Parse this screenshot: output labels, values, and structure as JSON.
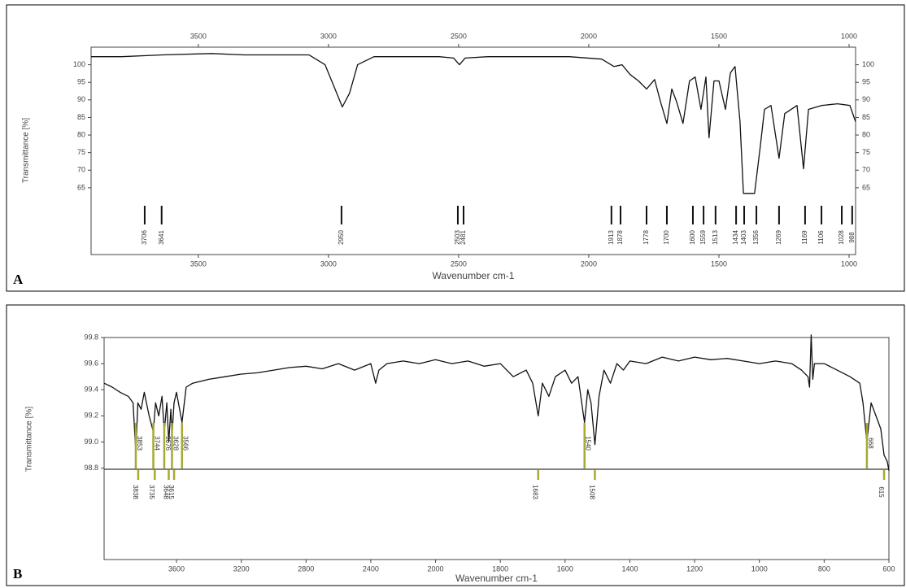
{
  "chart_data": [
    {
      "type": "line",
      "label": "A",
      "x_label": "Wavenumber cm-1",
      "y_label": "Transmittance [%]",
      "color": "#111111",
      "xlim": [
        3912,
        975
      ],
      "xticks": [
        3500,
        3000,
        2500,
        2000,
        1500,
        1000
      ],
      "ylim": [
        46,
        105
      ],
      "yticks": [
        100,
        95,
        90,
        85,
        80,
        75,
        70,
        65
      ],
      "x": [
        3912,
        3794,
        3638,
        3450,
        3325,
        3075,
        3013,
        2975,
        2947,
        2919,
        2888,
        2825,
        2575,
        2519,
        2497,
        2475,
        2388,
        2075,
        1950,
        1903,
        1872,
        1841,
        1809,
        1778,
        1747,
        1725,
        1700,
        1681,
        1663,
        1638,
        1613,
        1591,
        1569,
        1550,
        1538,
        1519,
        1500,
        1475,
        1456,
        1438,
        1419,
        1406,
        1363,
        1341,
        1325,
        1300,
        1269,
        1247,
        1200,
        1175,
        1156,
        1106,
        1044,
        997,
        975
      ],
      "values": [
        102.3,
        102.3,
        102.8,
        103.2,
        102.8,
        102.8,
        100,
        93.1,
        88.0,
        91.9,
        100,
        102.3,
        102.3,
        101.9,
        100,
        101.9,
        102.3,
        102.3,
        101.6,
        99.5,
        100,
        97.2,
        95.4,
        93.1,
        95.8,
        89.6,
        83.3,
        93.1,
        89.6,
        83.3,
        95.4,
        96.5,
        87.3,
        96.5,
        79.2,
        95.4,
        95.4,
        87.3,
        97.7,
        99.5,
        83.8,
        63.4,
        63.4,
        76.9,
        87.3,
        88.4,
        73.4,
        86.1,
        88.4,
        70.4,
        87.3,
        88.4,
        88.9,
        88.4,
        83.8
      ],
      "peaks": [
        3706,
        3641,
        2950,
        2503,
        2481,
        1913,
        1878,
        1778,
        1700,
        1600,
        1559,
        1513,
        1434,
        1403,
        1356,
        1269,
        1169,
        1106,
        1028,
        988
      ]
    },
    {
      "type": "line",
      "label": "B",
      "x_label": "Wavenumber cm-1",
      "y_label": "Transmittance [%]",
      "color": "#111111",
      "peak_color": "#a8a832",
      "xlim": [
        4050,
        600
      ],
      "xticks": [
        3600,
        3200,
        2800,
        2400,
        2000,
        1800,
        1600,
        1400,
        1200,
        1000,
        800,
        600
      ],
      "ylim": [
        98.1,
        99.8
      ],
      "yticks": [
        {
          "value": 99.8,
          "label": "99.8"
        },
        {
          "value": 99.6,
          "label": "99.6"
        },
        {
          "value": 99.4,
          "label": "99.4"
        },
        {
          "value": 99.2,
          "label": "99.2"
        },
        {
          "value": 99.0,
          "label": "99.0"
        },
        {
          "value": 98.8,
          "label": "98.8"
        }
      ],
      "x": [
        4050,
        4000,
        3950,
        3900,
        3870,
        3853,
        3840,
        3820,
        3800,
        3770,
        3744,
        3730,
        3710,
        3690,
        3676,
        3660,
        3648,
        3635,
        3628,
        3615,
        3600,
        3566,
        3540,
        3500,
        3400,
        3300,
        3200,
        3100,
        3000,
        2900,
        2800,
        2700,
        2600,
        2500,
        2400,
        2370,
        2350,
        2300,
        2200,
        2100,
        2000,
        1950,
        1900,
        1850,
        1800,
        1760,
        1720,
        1700,
        1683,
        1670,
        1650,
        1630,
        1600,
        1580,
        1560,
        1540,
        1530,
        1520,
        1508,
        1495,
        1480,
        1460,
        1440,
        1420,
        1400,
        1350,
        1300,
        1250,
        1200,
        1150,
        1100,
        1050,
        1000,
        950,
        900,
        870,
        850,
        845,
        840,
        835,
        830,
        800,
        760,
        720,
        690,
        680,
        668,
        655,
        640,
        625,
        615,
        605,
        600
      ],
      "values": [
        99.45,
        99.42,
        99.38,
        99.35,
        99.3,
        98.92,
        99.3,
        99.25,
        99.38,
        99.2,
        99.08,
        99.3,
        99.2,
        99.35,
        99.08,
        99.3,
        99.0,
        99.25,
        99.05,
        99.3,
        99.38,
        99.15,
        99.42,
        99.45,
        99.48,
        99.5,
        99.52,
        99.53,
        99.55,
        99.57,
        99.58,
        99.56,
        99.6,
        99.55,
        99.6,
        99.45,
        99.55,
        99.6,
        99.62,
        99.6,
        99.63,
        99.6,
        99.62,
        99.58,
        99.6,
        99.5,
        99.55,
        99.45,
        99.2,
        99.45,
        99.35,
        99.5,
        99.55,
        99.45,
        99.5,
        99.15,
        99.4,
        99.3,
        98.98,
        99.35,
        99.55,
        99.45,
        99.6,
        99.55,
        99.62,
        99.6,
        99.65,
        99.62,
        99.65,
        99.63,
        99.64,
        99.62,
        99.6,
        99.62,
        99.6,
        99.55,
        99.5,
        99.42,
        99.82,
        99.48,
        99.6,
        99.6,
        99.55,
        99.5,
        99.45,
        99.3,
        99.0,
        99.3,
        99.2,
        99.1,
        98.9,
        98.85,
        98.78
      ],
      "peaks": [
        3853,
        3838,
        3744,
        3735,
        3676,
        3648,
        3628,
        3615,
        3566,
        1683,
        1540,
        1508,
        668,
        615
      ]
    }
  ]
}
